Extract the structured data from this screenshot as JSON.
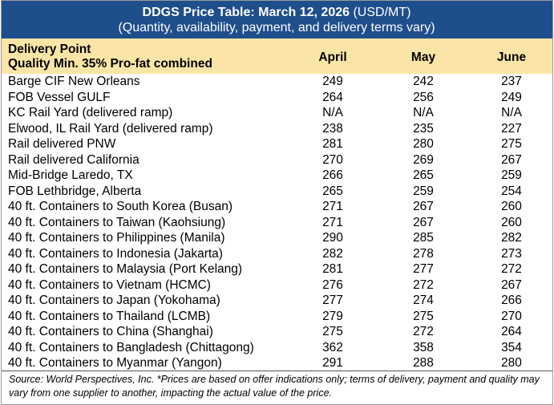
{
  "title": {
    "bold": "DDGS Price Table: March 12, 2026",
    "unit": " (USD/MT)",
    "subtitle": "(Quantity, availability, payment, and delivery terms vary)"
  },
  "header": {
    "delivery_point": "Delivery Point",
    "quality": "Quality Min. 35% Pro-fat combined",
    "columns": [
      "April",
      "May",
      "June"
    ]
  },
  "rows": [
    {
      "name": "Barge CIF New Orleans",
      "values": [
        "249",
        "242",
        "237"
      ]
    },
    {
      "name": "FOB Vessel GULF",
      "values": [
        "264",
        "256",
        "249"
      ]
    },
    {
      "name": "KC Rail Yard (delivered ramp)",
      "values": [
        "N/A",
        "N/A",
        "N/A"
      ]
    },
    {
      "name": "Elwood, IL Rail Yard (delivered ramp)",
      "values": [
        "238",
        "235",
        "227"
      ]
    },
    {
      "name": "Rail delivered PNW",
      "values": [
        "281",
        "280",
        "275"
      ]
    },
    {
      "name": "Rail delivered California",
      "values": [
        "270",
        "269",
        "267"
      ]
    },
    {
      "name": "Mid-Bridge Laredo, TX",
      "values": [
        "266",
        "265",
        "259"
      ]
    },
    {
      "name": "FOB Lethbridge, Alberta",
      "values": [
        "265",
        "259",
        "254"
      ]
    },
    {
      "name": "40 ft. Containers to South Korea (Busan)",
      "values": [
        "271",
        "267",
        "260"
      ]
    },
    {
      "name": "40 ft. Containers to Taiwan (Kaohsiung)",
      "values": [
        "271",
        "267",
        "260"
      ]
    },
    {
      "name": "40 ft. Containers to Philippines (Manila)",
      "values": [
        "290",
        "285",
        "282"
      ]
    },
    {
      "name": "40 ft. Containers to Indonesia (Jakarta)",
      "values": [
        "282",
        "278",
        "273"
      ]
    },
    {
      "name": "40 ft. Containers to Malaysia (Port Kelang)",
      "values": [
        "281",
        "277",
        "272"
      ]
    },
    {
      "name": "40 ft. Containers to Vietnam (HCMC)",
      "values": [
        "276",
        "272",
        "267"
      ]
    },
    {
      "name": "40 ft. Containers to Japan (Yokohama)",
      "values": [
        "277",
        "274",
        "266"
      ]
    },
    {
      "name": "40 ft. Containers to Thailand (LCMB)",
      "values": [
        "279",
        "275",
        "270"
      ]
    },
    {
      "name": "40 ft. Containers to China (Shanghai)",
      "values": [
        "275",
        "272",
        "264"
      ]
    },
    {
      "name": "40 ft. Containers to Bangladesh (Chittagong)",
      "values": [
        "362",
        "358",
        "354"
      ]
    },
    {
      "name": "40 ft. Containers to Myanmar (Yangon)",
      "values": [
        "291",
        "288",
        "280"
      ]
    }
  ],
  "footer": "Source: World Perspectives, Inc. *Prices are based on offer indications only; terms of delivery, payment and quality may vary from one supplier to another, impacting the actual value of the price.",
  "colors": {
    "title_bg": "#1f4e8c",
    "header_bg": "#fbe5a6"
  }
}
